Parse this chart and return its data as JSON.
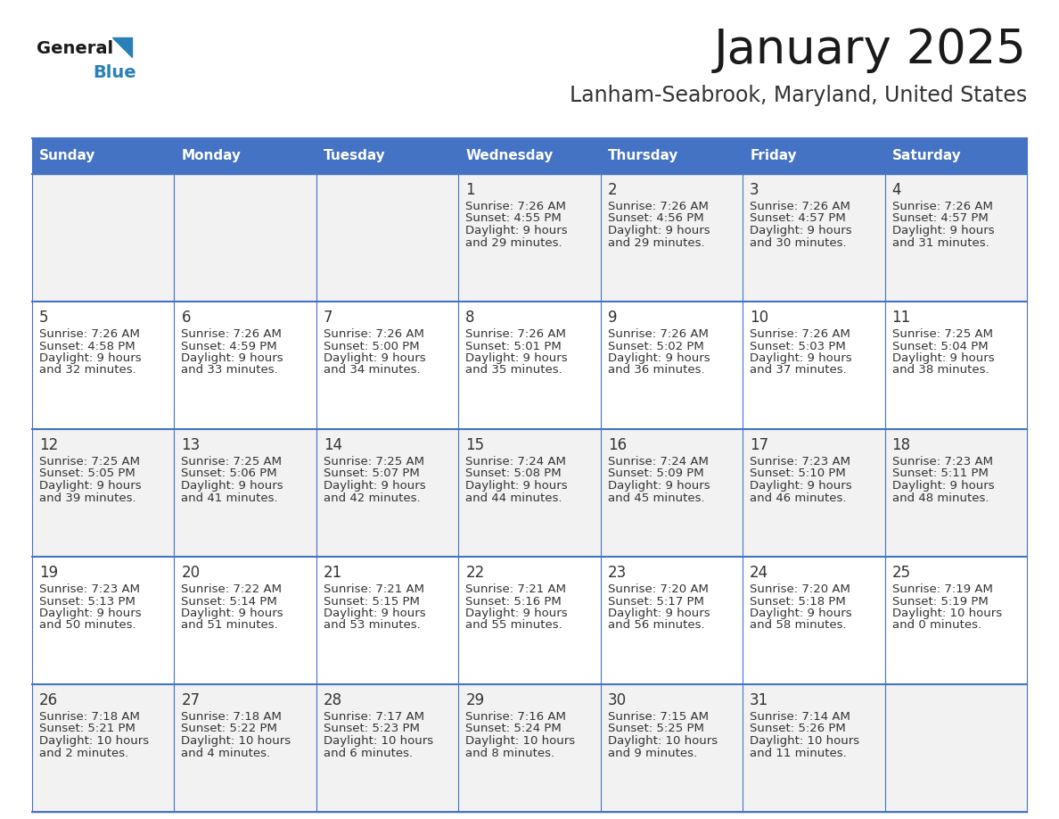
{
  "title": "January 2025",
  "subtitle": "Lanham-Seabrook, Maryland, United States",
  "days_of_week": [
    "Sunday",
    "Monday",
    "Tuesday",
    "Wednesday",
    "Thursday",
    "Friday",
    "Saturday"
  ],
  "header_bg": "#4472c4",
  "header_text": "#ffffff",
  "cell_bg_odd": "#f2f2f2",
  "cell_bg_even": "#ffffff",
  "cell_text": "#333333",
  "grid_line": "#4472c4",
  "title_color": "#1a1a1a",
  "subtitle_color": "#333333",
  "logo_general_color": "#1a1a1a",
  "logo_blue_color": "#2980b9",
  "weeks": [
    [
      {
        "day": null,
        "sunrise": null,
        "sunset": null,
        "daylight_line1": null,
        "daylight_line2": null
      },
      {
        "day": null,
        "sunrise": null,
        "sunset": null,
        "daylight_line1": null,
        "daylight_line2": null
      },
      {
        "day": null,
        "sunrise": null,
        "sunset": null,
        "daylight_line1": null,
        "daylight_line2": null
      },
      {
        "day": "1",
        "sunrise": "Sunrise: 7:26 AM",
        "sunset": "Sunset: 4:55 PM",
        "daylight_line1": "Daylight: 9 hours",
        "daylight_line2": "and 29 minutes."
      },
      {
        "day": "2",
        "sunrise": "Sunrise: 7:26 AM",
        "sunset": "Sunset: 4:56 PM",
        "daylight_line1": "Daylight: 9 hours",
        "daylight_line2": "and 29 minutes."
      },
      {
        "day": "3",
        "sunrise": "Sunrise: 7:26 AM",
        "sunset": "Sunset: 4:57 PM",
        "daylight_line1": "Daylight: 9 hours",
        "daylight_line2": "and 30 minutes."
      },
      {
        "day": "4",
        "sunrise": "Sunrise: 7:26 AM",
        "sunset": "Sunset: 4:57 PM",
        "daylight_line1": "Daylight: 9 hours",
        "daylight_line2": "and 31 minutes."
      }
    ],
    [
      {
        "day": "5",
        "sunrise": "Sunrise: 7:26 AM",
        "sunset": "Sunset: 4:58 PM",
        "daylight_line1": "Daylight: 9 hours",
        "daylight_line2": "and 32 minutes."
      },
      {
        "day": "6",
        "sunrise": "Sunrise: 7:26 AM",
        "sunset": "Sunset: 4:59 PM",
        "daylight_line1": "Daylight: 9 hours",
        "daylight_line2": "and 33 minutes."
      },
      {
        "day": "7",
        "sunrise": "Sunrise: 7:26 AM",
        "sunset": "Sunset: 5:00 PM",
        "daylight_line1": "Daylight: 9 hours",
        "daylight_line2": "and 34 minutes."
      },
      {
        "day": "8",
        "sunrise": "Sunrise: 7:26 AM",
        "sunset": "Sunset: 5:01 PM",
        "daylight_line1": "Daylight: 9 hours",
        "daylight_line2": "and 35 minutes."
      },
      {
        "day": "9",
        "sunrise": "Sunrise: 7:26 AM",
        "sunset": "Sunset: 5:02 PM",
        "daylight_line1": "Daylight: 9 hours",
        "daylight_line2": "and 36 minutes."
      },
      {
        "day": "10",
        "sunrise": "Sunrise: 7:26 AM",
        "sunset": "Sunset: 5:03 PM",
        "daylight_line1": "Daylight: 9 hours",
        "daylight_line2": "and 37 minutes."
      },
      {
        "day": "11",
        "sunrise": "Sunrise: 7:25 AM",
        "sunset": "Sunset: 5:04 PM",
        "daylight_line1": "Daylight: 9 hours",
        "daylight_line2": "and 38 minutes."
      }
    ],
    [
      {
        "day": "12",
        "sunrise": "Sunrise: 7:25 AM",
        "sunset": "Sunset: 5:05 PM",
        "daylight_line1": "Daylight: 9 hours",
        "daylight_line2": "and 39 minutes."
      },
      {
        "day": "13",
        "sunrise": "Sunrise: 7:25 AM",
        "sunset": "Sunset: 5:06 PM",
        "daylight_line1": "Daylight: 9 hours",
        "daylight_line2": "and 41 minutes."
      },
      {
        "day": "14",
        "sunrise": "Sunrise: 7:25 AM",
        "sunset": "Sunset: 5:07 PM",
        "daylight_line1": "Daylight: 9 hours",
        "daylight_line2": "and 42 minutes."
      },
      {
        "day": "15",
        "sunrise": "Sunrise: 7:24 AM",
        "sunset": "Sunset: 5:08 PM",
        "daylight_line1": "Daylight: 9 hours",
        "daylight_line2": "and 44 minutes."
      },
      {
        "day": "16",
        "sunrise": "Sunrise: 7:24 AM",
        "sunset": "Sunset: 5:09 PM",
        "daylight_line1": "Daylight: 9 hours",
        "daylight_line2": "and 45 minutes."
      },
      {
        "day": "17",
        "sunrise": "Sunrise: 7:23 AM",
        "sunset": "Sunset: 5:10 PM",
        "daylight_line1": "Daylight: 9 hours",
        "daylight_line2": "and 46 minutes."
      },
      {
        "day": "18",
        "sunrise": "Sunrise: 7:23 AM",
        "sunset": "Sunset: 5:11 PM",
        "daylight_line1": "Daylight: 9 hours",
        "daylight_line2": "and 48 minutes."
      }
    ],
    [
      {
        "day": "19",
        "sunrise": "Sunrise: 7:23 AM",
        "sunset": "Sunset: 5:13 PM",
        "daylight_line1": "Daylight: 9 hours",
        "daylight_line2": "and 50 minutes."
      },
      {
        "day": "20",
        "sunrise": "Sunrise: 7:22 AM",
        "sunset": "Sunset: 5:14 PM",
        "daylight_line1": "Daylight: 9 hours",
        "daylight_line2": "and 51 minutes."
      },
      {
        "day": "21",
        "sunrise": "Sunrise: 7:21 AM",
        "sunset": "Sunset: 5:15 PM",
        "daylight_line1": "Daylight: 9 hours",
        "daylight_line2": "and 53 minutes."
      },
      {
        "day": "22",
        "sunrise": "Sunrise: 7:21 AM",
        "sunset": "Sunset: 5:16 PM",
        "daylight_line1": "Daylight: 9 hours",
        "daylight_line2": "and 55 minutes."
      },
      {
        "day": "23",
        "sunrise": "Sunrise: 7:20 AM",
        "sunset": "Sunset: 5:17 PM",
        "daylight_line1": "Daylight: 9 hours",
        "daylight_line2": "and 56 minutes."
      },
      {
        "day": "24",
        "sunrise": "Sunrise: 7:20 AM",
        "sunset": "Sunset: 5:18 PM",
        "daylight_line1": "Daylight: 9 hours",
        "daylight_line2": "and 58 minutes."
      },
      {
        "day": "25",
        "sunrise": "Sunrise: 7:19 AM",
        "sunset": "Sunset: 5:19 PM",
        "daylight_line1": "Daylight: 10 hours",
        "daylight_line2": "and 0 minutes."
      }
    ],
    [
      {
        "day": "26",
        "sunrise": "Sunrise: 7:18 AM",
        "sunset": "Sunset: 5:21 PM",
        "daylight_line1": "Daylight: 10 hours",
        "daylight_line2": "and 2 minutes."
      },
      {
        "day": "27",
        "sunrise": "Sunrise: 7:18 AM",
        "sunset": "Sunset: 5:22 PM",
        "daylight_line1": "Daylight: 10 hours",
        "daylight_line2": "and 4 minutes."
      },
      {
        "day": "28",
        "sunrise": "Sunrise: 7:17 AM",
        "sunset": "Sunset: 5:23 PM",
        "daylight_line1": "Daylight: 10 hours",
        "daylight_line2": "and 6 minutes."
      },
      {
        "day": "29",
        "sunrise": "Sunrise: 7:16 AM",
        "sunset": "Sunset: 5:24 PM",
        "daylight_line1": "Daylight: 10 hours",
        "daylight_line2": "and 8 minutes."
      },
      {
        "day": "30",
        "sunrise": "Sunrise: 7:15 AM",
        "sunset": "Sunset: 5:25 PM",
        "daylight_line1": "Daylight: 10 hours",
        "daylight_line2": "and 9 minutes."
      },
      {
        "day": "31",
        "sunrise": "Sunrise: 7:14 AM",
        "sunset": "Sunset: 5:26 PM",
        "daylight_line1": "Daylight: 10 hours",
        "daylight_line2": "and 11 minutes."
      },
      {
        "day": null,
        "sunrise": null,
        "sunset": null,
        "daylight_line1": null,
        "daylight_line2": null
      }
    ]
  ]
}
